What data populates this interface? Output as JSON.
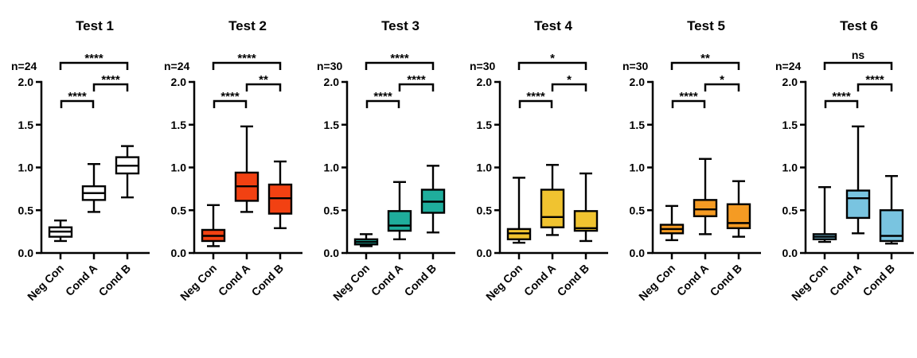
{
  "figure": {
    "background": "#ffffff",
    "axis_color": "#000000"
  },
  "chart_data": [
    {
      "type": "box",
      "title": "Test 1",
      "n_label": "n=24",
      "color": "#ffffff",
      "ylim": [
        0.0,
        2.0
      ],
      "y_ticks": [
        "0.0",
        "0.5",
        "1.0",
        "1.5",
        "2.0"
      ],
      "categories": [
        "Neg Con",
        "Cond A",
        "Cond B"
      ],
      "boxes": [
        {
          "category": "Neg Con",
          "min": 0.14,
          "q1": 0.19,
          "median": 0.25,
          "q3": 0.3,
          "max": 0.38
        },
        {
          "category": "Cond A",
          "min": 0.48,
          "q1": 0.62,
          "median": 0.7,
          "q3": 0.78,
          "max": 1.04
        },
        {
          "category": "Cond B",
          "min": 0.65,
          "q1": 0.93,
          "median": 1.02,
          "q3": 1.12,
          "max": 1.25
        }
      ],
      "comparisons": [
        {
          "groups": [
            "Neg Con",
            "Cond A"
          ],
          "label": "****",
          "level": 0
        },
        {
          "groups": [
            "Cond A",
            "Cond B"
          ],
          "label": "****",
          "level": 1
        },
        {
          "groups": [
            "Neg Con",
            "Cond B"
          ],
          "label": "****",
          "level": 2
        }
      ]
    },
    {
      "type": "box",
      "title": "Test 2",
      "n_label": "n=24",
      "color": "#F24112",
      "ylim": [
        0.0,
        2.0
      ],
      "y_ticks": [
        "0.0",
        "0.5",
        "1.0",
        "1.5",
        "2.0"
      ],
      "categories": [
        "Neg Con",
        "Cond A",
        "Cond B"
      ],
      "boxes": [
        {
          "category": "Neg Con",
          "min": 0.08,
          "q1": 0.14,
          "median": 0.2,
          "q3": 0.27,
          "max": 0.56
        },
        {
          "category": "Cond A",
          "min": 0.48,
          "q1": 0.61,
          "median": 0.78,
          "q3": 0.94,
          "max": 1.48
        },
        {
          "category": "Cond B",
          "min": 0.29,
          "q1": 0.46,
          "median": 0.64,
          "q3": 0.8,
          "max": 1.07
        }
      ],
      "comparisons": [
        {
          "groups": [
            "Neg Con",
            "Cond A"
          ],
          "label": "****",
          "level": 0
        },
        {
          "groups": [
            "Cond A",
            "Cond B"
          ],
          "label": "**",
          "level": 1
        },
        {
          "groups": [
            "Neg Con",
            "Cond B"
          ],
          "label": "****",
          "level": 2
        }
      ]
    },
    {
      "type": "box",
      "title": "Test 3",
      "n_label": "n=30",
      "color": "#1FAD9C",
      "ylim": [
        0.0,
        2.0
      ],
      "y_ticks": [
        "0.0",
        "0.5",
        "1.0",
        "1.5",
        "2.0"
      ],
      "categories": [
        "Neg Con",
        "Cond A",
        "Cond B"
      ],
      "boxes": [
        {
          "category": "Neg Con",
          "min": 0.08,
          "q1": 0.1,
          "median": 0.13,
          "q3": 0.16,
          "max": 0.22
        },
        {
          "category": "Cond A",
          "min": 0.16,
          "q1": 0.26,
          "median": 0.32,
          "q3": 0.49,
          "max": 0.83
        },
        {
          "category": "Cond B",
          "min": 0.24,
          "q1": 0.47,
          "median": 0.6,
          "q3": 0.74,
          "max": 1.02
        }
      ],
      "comparisons": [
        {
          "groups": [
            "Neg Con",
            "Cond A"
          ],
          "label": "****",
          "level": 0
        },
        {
          "groups": [
            "Cond A",
            "Cond B"
          ],
          "label": "****",
          "level": 1
        },
        {
          "groups": [
            "Neg Con",
            "Cond B"
          ],
          "label": "****",
          "level": 2
        }
      ]
    },
    {
      "type": "box",
      "title": "Test 4",
      "n_label": "n=30",
      "color": "#F0C330",
      "ylim": [
        0.0,
        2.0
      ],
      "y_ticks": [
        "0.0",
        "0.5",
        "1.0",
        "1.5",
        "2.0"
      ],
      "categories": [
        "Neg Con",
        "Cond A",
        "Cond B"
      ],
      "boxes": [
        {
          "category": "Neg Con",
          "min": 0.12,
          "q1": 0.16,
          "median": 0.23,
          "q3": 0.28,
          "max": 0.88
        },
        {
          "category": "Cond A",
          "min": 0.21,
          "q1": 0.3,
          "median": 0.42,
          "q3": 0.74,
          "max": 1.03
        },
        {
          "category": "Cond B",
          "min": 0.14,
          "q1": 0.26,
          "median": 0.29,
          "q3": 0.49,
          "max": 0.93
        }
      ],
      "comparisons": [
        {
          "groups": [
            "Neg Con",
            "Cond A"
          ],
          "label": "****",
          "level": 0
        },
        {
          "groups": [
            "Cond A",
            "Cond B"
          ],
          "label": "*",
          "level": 1
        },
        {
          "groups": [
            "Neg Con",
            "Cond B"
          ],
          "label": "*",
          "level": 2
        }
      ]
    },
    {
      "type": "box",
      "title": "Test 5",
      "n_label": "n=30",
      "color": "#F59B23",
      "ylim": [
        0.0,
        2.0
      ],
      "y_ticks": [
        "0.0",
        "0.5",
        "1.0",
        "1.5",
        "2.0"
      ],
      "categories": [
        "Neg Con",
        "Cond A",
        "Cond B"
      ],
      "boxes": [
        {
          "category": "Neg Con",
          "min": 0.15,
          "q1": 0.23,
          "median": 0.28,
          "q3": 0.33,
          "max": 0.55
        },
        {
          "category": "Cond A",
          "min": 0.22,
          "q1": 0.43,
          "median": 0.51,
          "q3": 0.62,
          "max": 1.1
        },
        {
          "category": "Cond B",
          "min": 0.19,
          "q1": 0.29,
          "median": 0.35,
          "q3": 0.57,
          "max": 0.84
        }
      ],
      "comparisons": [
        {
          "groups": [
            "Neg Con",
            "Cond A"
          ],
          "label": "****",
          "level": 0
        },
        {
          "groups": [
            "Cond A",
            "Cond B"
          ],
          "label": "*",
          "level": 1
        },
        {
          "groups": [
            "Neg Con",
            "Cond B"
          ],
          "label": "**",
          "level": 2
        }
      ]
    },
    {
      "type": "box",
      "title": "Test 6",
      "n_label": "n=24",
      "color": "#79C4E0",
      "ylim": [
        0.0,
        2.0
      ],
      "y_ticks": [
        "0.0",
        "0.5",
        "1.0",
        "1.5",
        "2.0"
      ],
      "categories": [
        "Neg Con",
        "Cond A",
        "Cond B"
      ],
      "boxes": [
        {
          "category": "Neg Con",
          "min": 0.13,
          "q1": 0.16,
          "median": 0.19,
          "q3": 0.22,
          "max": 0.77
        },
        {
          "category": "Cond A",
          "min": 0.23,
          "q1": 0.41,
          "median": 0.64,
          "q3": 0.73,
          "max": 1.48
        },
        {
          "category": "Cond B",
          "min": 0.11,
          "q1": 0.14,
          "median": 0.2,
          "q3": 0.5,
          "max": 0.9
        }
      ],
      "comparisons": [
        {
          "groups": [
            "Neg Con",
            "Cond A"
          ],
          "label": "****",
          "level": 0
        },
        {
          "groups": [
            "Cond A",
            "Cond B"
          ],
          "label": "****",
          "level": 1
        },
        {
          "groups": [
            "Neg Con",
            "Cond B"
          ],
          "label": "ns",
          "level": 2
        }
      ]
    }
  ]
}
